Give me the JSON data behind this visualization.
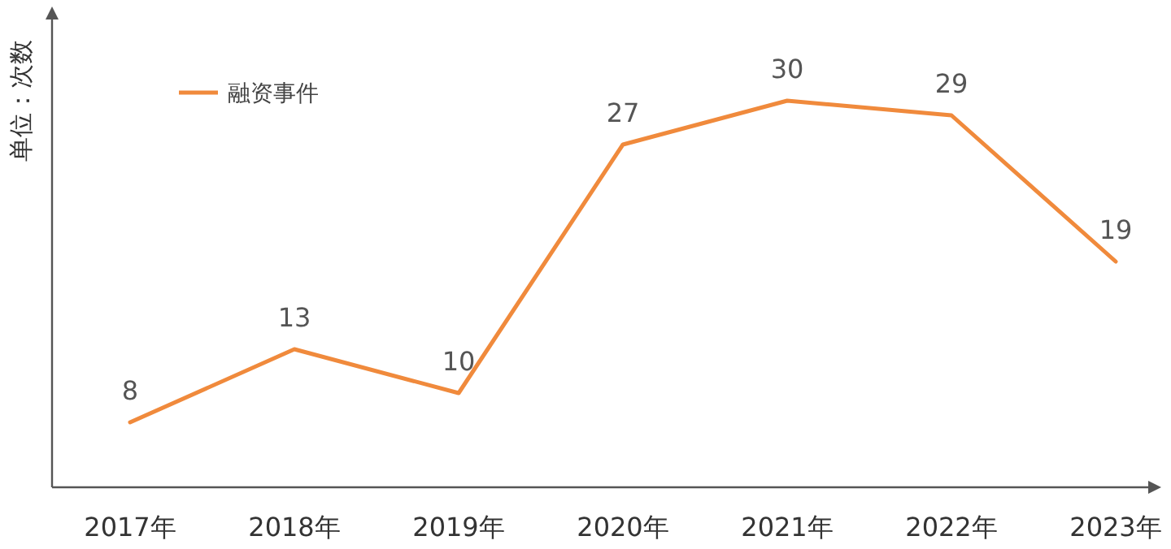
{
  "chart_data": {
    "type": "line",
    "ylabel": "单位：次数",
    "categories": [
      "2017年",
      "2018年",
      "2019年",
      "2020年",
      "2021年",
      "2022年",
      "2023年"
    ],
    "series": [
      {
        "name": "融资事件",
        "color": "#f08a3c",
        "values": [
          8,
          13,
          10,
          27,
          30,
          29,
          19
        ]
      }
    ],
    "data_labels": true,
    "legend": "top left"
  }
}
